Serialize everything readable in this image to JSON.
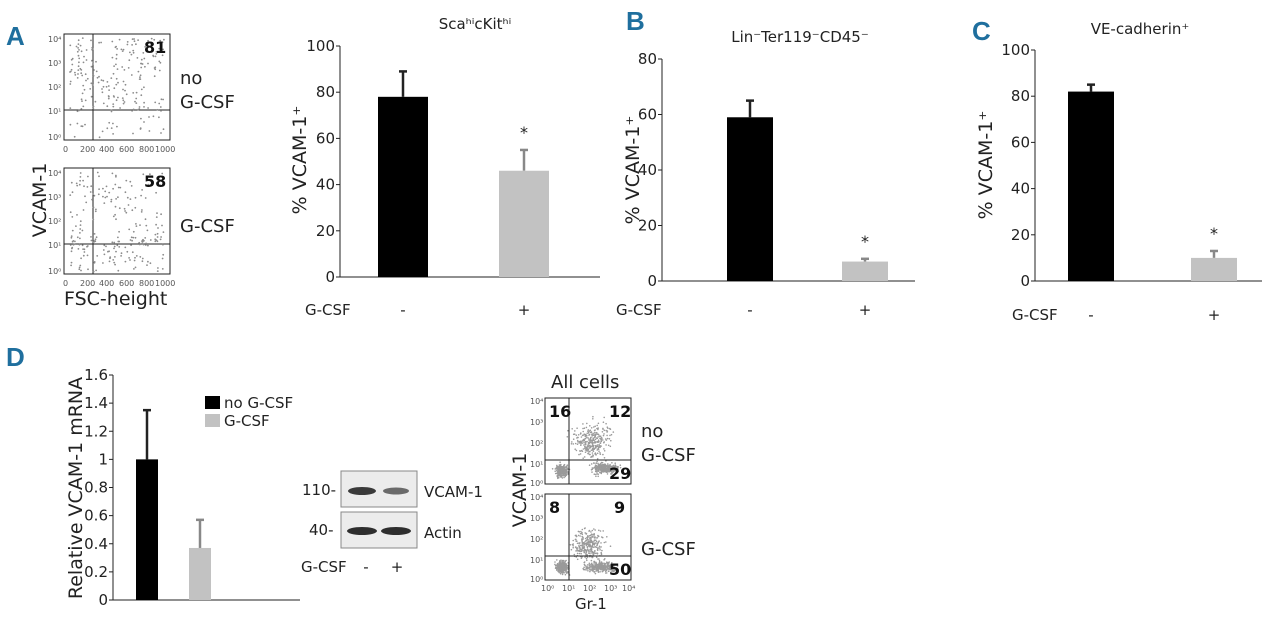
{
  "panels": {
    "a": "A",
    "b": "B",
    "c": "C",
    "d": "D"
  },
  "flowA": {
    "ylabel": "VCAM-1",
    "xlabel": "FSC-height",
    "top": {
      "pct": "81",
      "label1": "no",
      "label2": "G-CSF"
    },
    "bottom": {
      "pct": "58",
      "label": "G-CSF"
    },
    "xticks": [
      "0",
      "200",
      "400",
      "600",
      "800",
      "1000"
    ],
    "yticks": [
      "10⁴",
      "10³",
      "10²",
      "10¹",
      "10⁰"
    ]
  },
  "gcsf_label": "G-CSF",
  "sig_marker": "*",
  "chart_data": [
    {
      "type": "bar",
      "title": "ScaʰⁱcKitʰⁱ",
      "ylabel": "% VCAM-1⁺",
      "categories": [
        "-",
        "+"
      ],
      "values": [
        78,
        46
      ],
      "errors": [
        11,
        9
      ],
      "colors": [
        "#000000",
        "#c2c2c2"
      ],
      "significant": [
        false,
        true
      ],
      "ylim": [
        0,
        100
      ],
      "yticks": [
        "0",
        "20",
        "40",
        "60",
        "80",
        "100"
      ]
    },
    {
      "type": "bar",
      "title": "Lin⁻Ter119⁻CD45⁻",
      "ylabel": "% VCAM-1⁺",
      "categories": [
        "-",
        "+"
      ],
      "values": [
        59,
        7
      ],
      "errors": [
        6,
        1
      ],
      "colors": [
        "#000000",
        "#c2c2c2"
      ],
      "significant": [
        false,
        true
      ],
      "ylim": [
        0,
        80
      ],
      "yticks": [
        "0",
        "20",
        "40",
        "60",
        "80"
      ]
    },
    {
      "type": "bar",
      "title": "VE-cadherin⁺",
      "ylabel": "% VCAM-1⁺",
      "categories": [
        "-",
        "+"
      ],
      "values": [
        82,
        10
      ],
      "errors": [
        3,
        3
      ],
      "colors": [
        "#000000",
        "#c2c2c2"
      ],
      "significant": [
        false,
        true
      ],
      "ylim": [
        0,
        100
      ],
      "yticks": [
        "0",
        "20",
        "40",
        "60",
        "80",
        "100"
      ]
    },
    {
      "type": "bar",
      "ylabel": "Relative VCAM-1 mRNA",
      "series": [
        {
          "name": "no G-CSF",
          "value": 1.0,
          "error": 0.35,
          "color": "#000000"
        },
        {
          "name": "G-CSF",
          "value": 0.37,
          "error": 0.2,
          "color": "#c2c2c2"
        }
      ],
      "ylim": [
        0,
        1.6
      ],
      "yticks": [
        "0",
        "0.2",
        "0.4",
        "0.6",
        "0.8",
        "1",
        "1.2",
        "1.4",
        "1.6"
      ]
    }
  ],
  "blot": {
    "marker110": "110-",
    "marker40": "40-",
    "band1": "VCAM-1",
    "band2": "Actin",
    "lanes": [
      "-",
      "+"
    ]
  },
  "flowD": {
    "title": "All cells",
    "ylabel": "VCAM-1",
    "xlabel": "Gr-1",
    "top": {
      "ul": "16",
      "ur": "12",
      "lr": "29",
      "label1": "no",
      "label2": "G-CSF"
    },
    "bottom": {
      "ul": "8",
      "ur": "9",
      "lr": "50",
      "label": "G-CSF"
    },
    "ticks": [
      "10⁰",
      "10¹",
      "10²",
      "10³",
      "10⁴"
    ]
  }
}
